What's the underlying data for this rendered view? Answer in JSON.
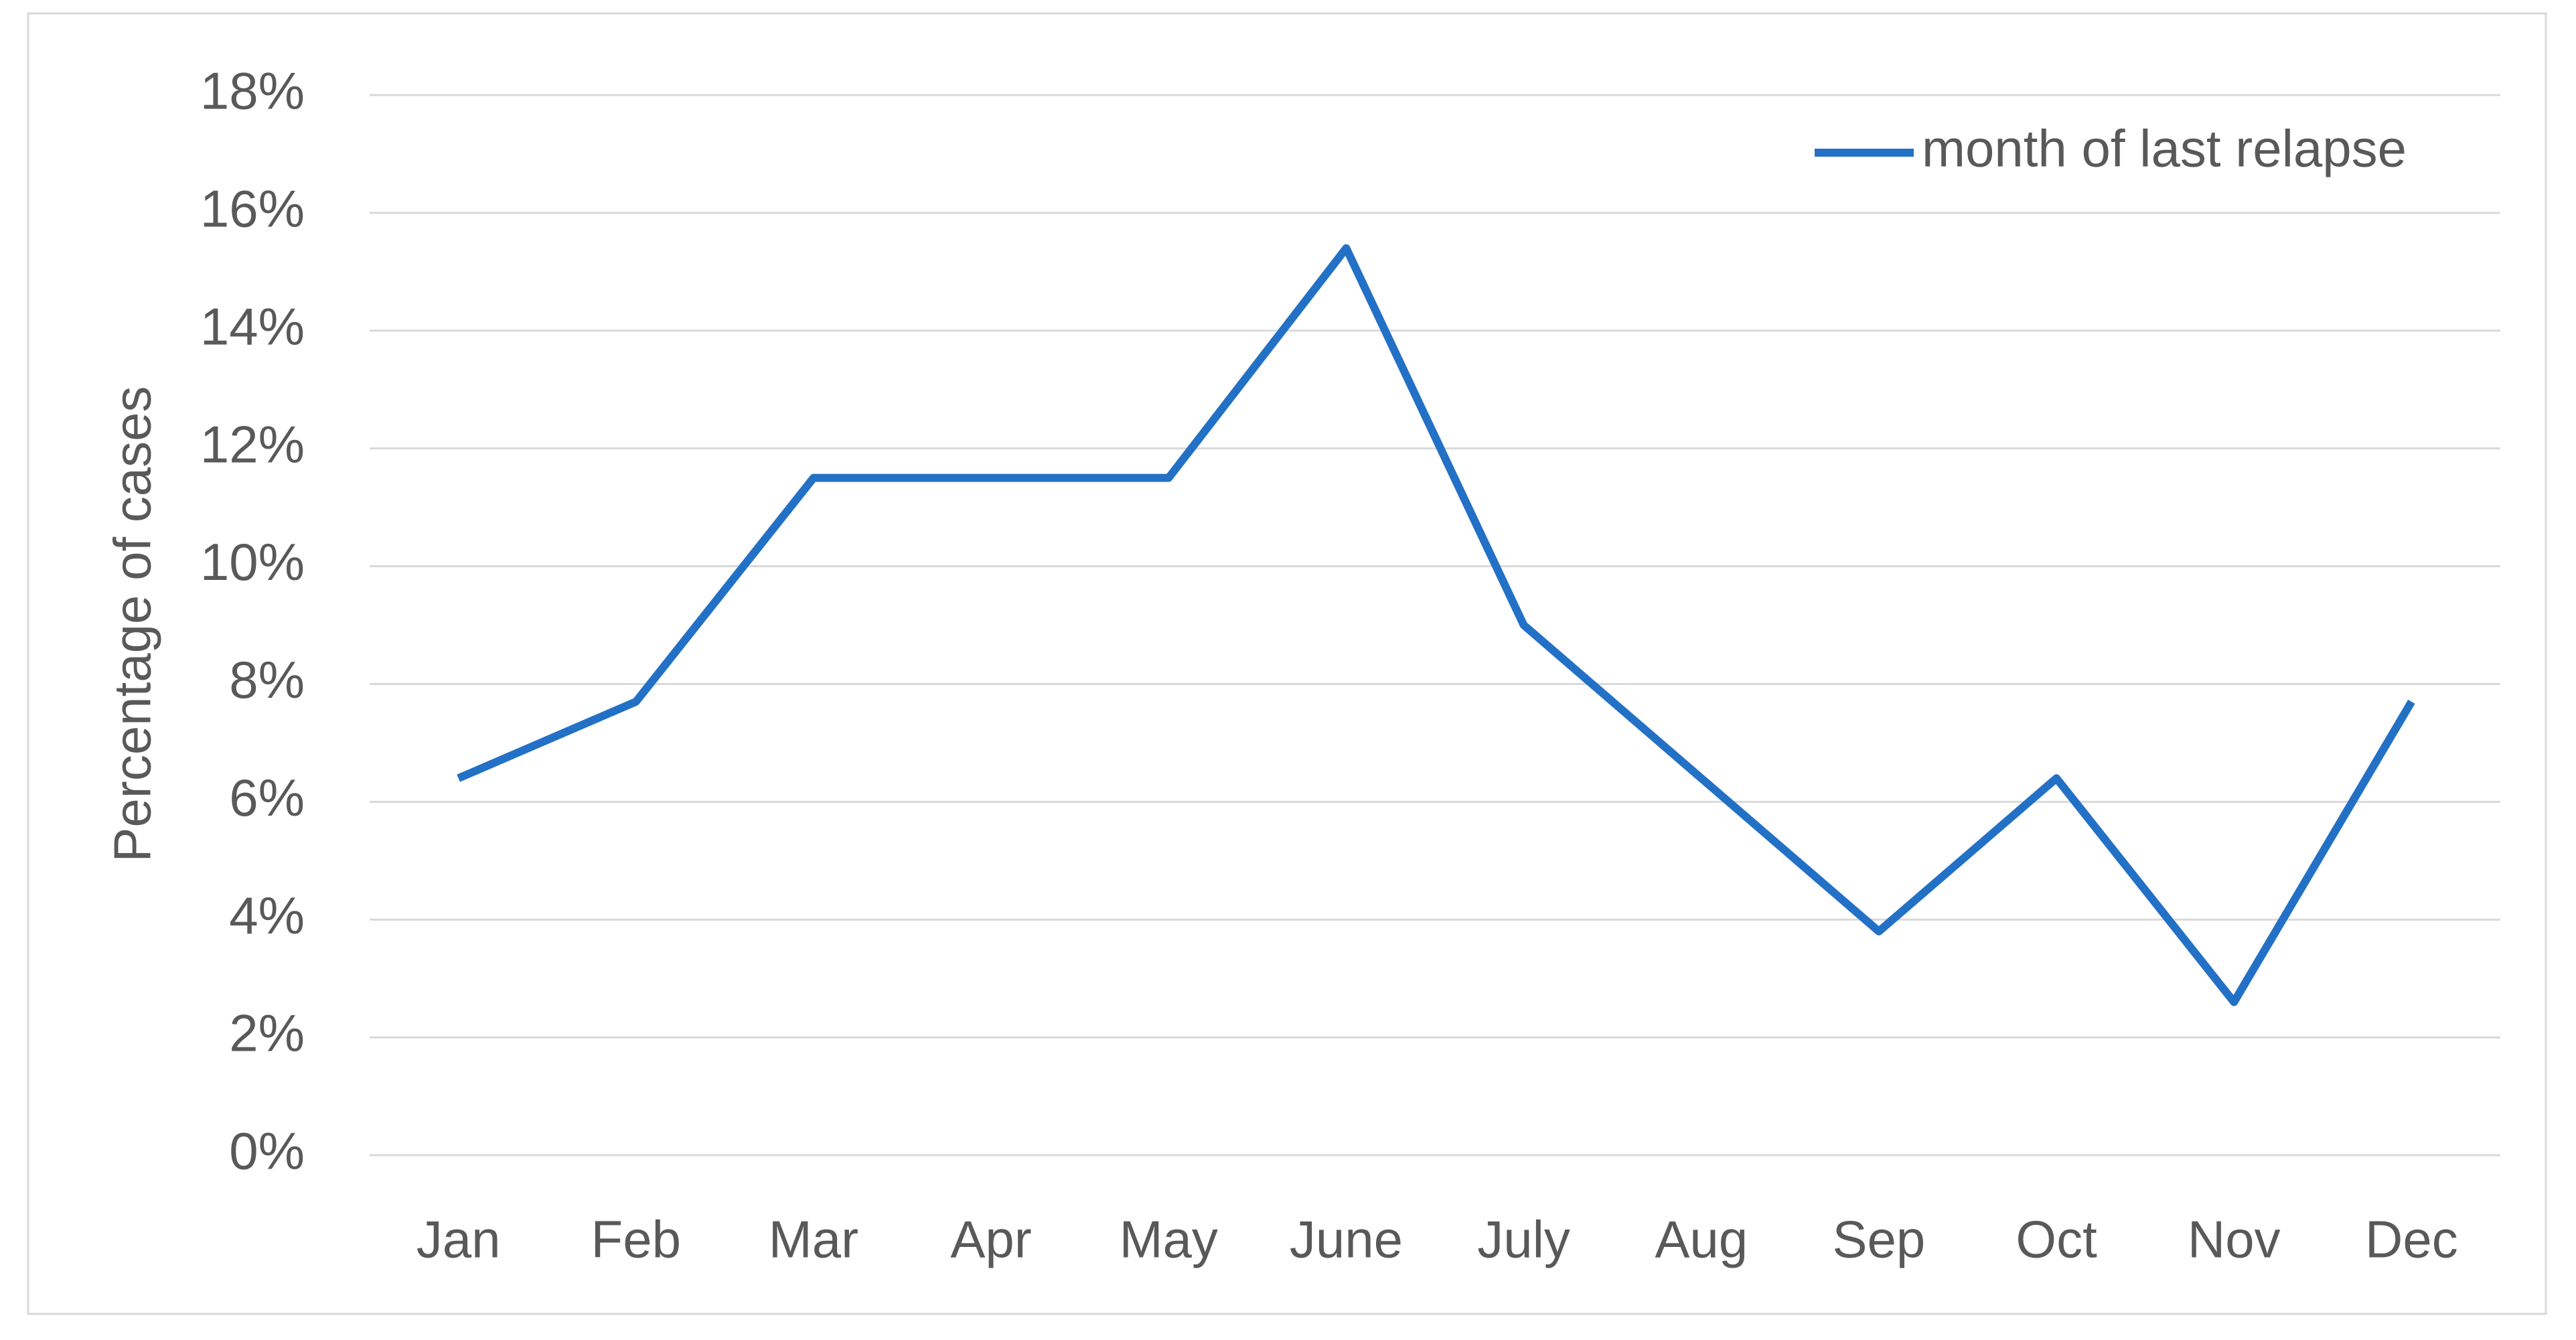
{
  "chart_data": {
    "type": "line",
    "y_axis_label": "Percentage of cases",
    "categories": [
      "Jan",
      "Feb",
      "Mar",
      "Apr",
      "May",
      "June",
      "July",
      "Aug",
      "Sep",
      "Oct",
      "Nov",
      "Dec"
    ],
    "series": [
      {
        "name": "month of last relapse",
        "color": "#2371c6",
        "values": [
          6.4,
          7.7,
          11.5,
          11.5,
          11.5,
          15.4,
          9.0,
          6.4,
          3.8,
          6.4,
          2.6,
          7.7
        ]
      }
    ],
    "ylim": [
      0,
      18
    ],
    "yticks": [
      {
        "value": 0,
        "label": "0%"
      },
      {
        "value": 2,
        "label": "2%"
      },
      {
        "value": 4,
        "label": "4%"
      },
      {
        "value": 6,
        "label": "6%"
      },
      {
        "value": 8,
        "label": "8%"
      },
      {
        "value": 10,
        "label": "10%"
      },
      {
        "value": 12,
        "label": "12%"
      },
      {
        "value": 14,
        "label": "14%"
      },
      {
        "value": 16,
        "label": "16%"
      },
      {
        "value": 18,
        "label": "18%"
      }
    ],
    "grid": true,
    "legend": "top-right"
  }
}
